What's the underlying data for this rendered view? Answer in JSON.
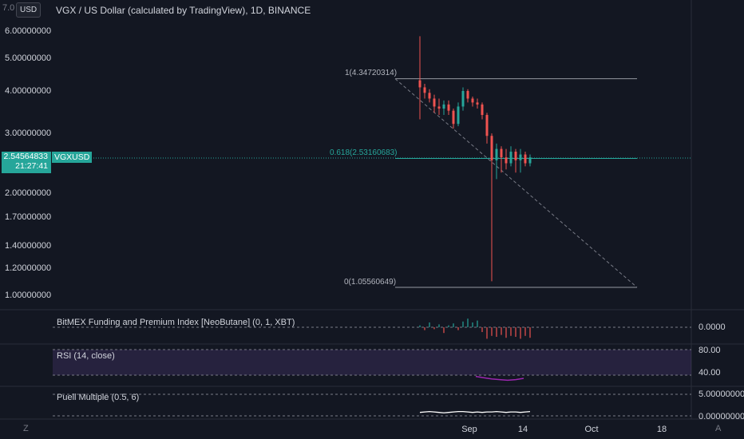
{
  "header": {
    "title": "VGX / US Dollar (calculated by TradingView), 1D, BINANCE",
    "currency_button": "USD",
    "top_partial_label": "7.0"
  },
  "price_axis": {
    "ticks": [
      "6.00000000",
      "5.00000000",
      "4.00000000",
      "3.00000000",
      "2.00000000",
      "1.70000000",
      "1.40000000",
      "1.20000000",
      "1.00000000"
    ],
    "tick_values": [
      6.0,
      5.0,
      4.0,
      3.0,
      2.0,
      1.7,
      1.4,
      1.2,
      1.0
    ],
    "scale": "log",
    "current_price": "2.54564833",
    "countdown": "21:27:41",
    "symbol": "VGXUSD"
  },
  "time_axis": {
    "labels": [
      "Sep",
      "14",
      "Oct",
      "18"
    ]
  },
  "fibonacci": {
    "level_1_label": "1(4.34720314)",
    "level_0618_label": "0.618(2.53160683)",
    "level_0_label": "0(1.05560649)",
    "level_1_value": 4.34720314,
    "level_0618_value": 2.53160683,
    "level_0_value": 1.05560649
  },
  "panes": {
    "bitmex": {
      "title": "BitMEX Funding and Premium Index [NeoButane] (0, 1, XBT)",
      "value": "0.0000"
    },
    "rsi": {
      "title": "RSI (14, close)",
      "upper": "80.00",
      "lower": "40.00"
    },
    "puell": {
      "title": "Puell Multiple (0.5, 6)",
      "upper": "5.00000000",
      "lower": "0.00000000"
    }
  },
  "corners": {
    "left": "Z",
    "right": "A"
  },
  "colors": {
    "background": "#131722",
    "up": "#26a69a",
    "down": "#ef5350",
    "rsi_band": "#7e57c2",
    "rsi_line": "#9c27b0",
    "grid": "#2a2e39"
  },
  "chart_data": {
    "type": "candlestick",
    "title": "VGX / US Dollar (calculated by TradingView), 1D, BINANCE",
    "yscale": "log",
    "ylim": [
      1.0,
      7.0
    ],
    "candles": [
      [
        4.3,
        5.8,
        3.3,
        4.1
      ],
      [
        4.1,
        4.2,
        3.8,
        3.95
      ],
      [
        3.95,
        4.05,
        3.7,
        3.8
      ],
      [
        3.8,
        3.9,
        3.45,
        3.6
      ],
      [
        3.6,
        3.8,
        3.4,
        3.55
      ],
      [
        3.55,
        3.75,
        3.4,
        3.65
      ],
      [
        3.65,
        3.75,
        3.4,
        3.5
      ],
      [
        3.5,
        3.55,
        3.1,
        3.2
      ],
      [
        3.2,
        3.7,
        3.15,
        3.6
      ],
      [
        3.6,
        4.1,
        3.5,
        4.0
      ],
      [
        4.0,
        4.05,
        3.7,
        3.8
      ],
      [
        3.8,
        3.85,
        3.6,
        3.7
      ],
      [
        3.7,
        3.8,
        3.55,
        3.65
      ],
      [
        3.65,
        3.7,
        3.3,
        3.4
      ],
      [
        3.4,
        3.45,
        2.8,
        2.95
      ],
      [
        2.95,
        3.0,
        1.1,
        2.5
      ],
      [
        2.5,
        2.8,
        2.2,
        2.7
      ],
      [
        2.7,
        2.75,
        2.3,
        2.55
      ],
      [
        2.55,
        2.7,
        2.35,
        2.45
      ],
      [
        2.45,
        2.75,
        2.4,
        2.65
      ],
      [
        2.65,
        2.7,
        2.3,
        2.5
      ],
      [
        2.5,
        2.7,
        2.3,
        2.6
      ],
      [
        2.6,
        2.65,
        2.4,
        2.45
      ],
      [
        2.45,
        2.6,
        2.4,
        2.55
      ]
    ],
    "funding": [
      0.2,
      -0.3,
      0.5,
      -0.2,
      0.3,
      -0.6,
      0.2,
      0.4,
      -0.3,
      0.6,
      0.9,
      0.5,
      0.7,
      -0.5,
      -1.2,
      -0.9,
      -1.0,
      -0.8,
      -1.1,
      -0.9,
      -1.0,
      -1.2,
      -0.9,
      -1.1
    ],
    "rsi_values": [
      38,
      36,
      34,
      33,
      32,
      33,
      35
    ],
    "puell_values": [
      0.8,
      0.9,
      1.0,
      0.9,
      0.8,
      0.7,
      0.8,
      0.9,
      1.0,
      1.0,
      0.9,
      0.8,
      0.9,
      0.8,
      0.9,
      0.9,
      1.0,
      0.9,
      0.8,
      0.9,
      0.9,
      0.8,
      0.9,
      1.0
    ]
  }
}
